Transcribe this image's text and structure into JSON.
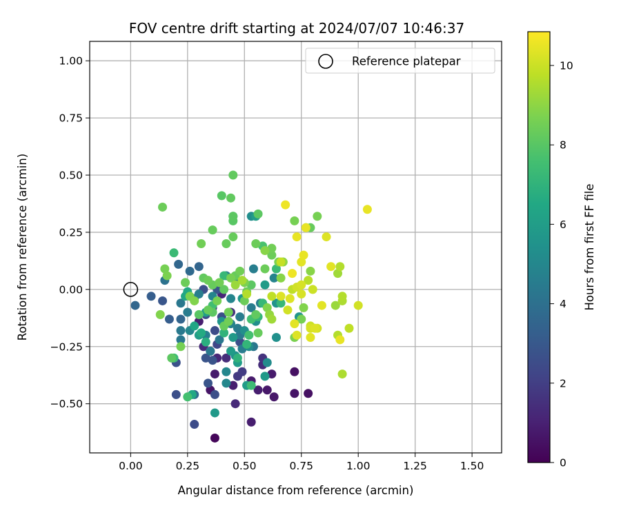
{
  "chart_data": {
    "type": "scatter",
    "title": "FOV centre drift starting at 2024/07/07 10:46:37",
    "xlabel": "Angular distance from reference (arcmin)",
    "ylabel": "Rotation from reference (arcmin)",
    "xlim": [
      -0.18,
      1.63
    ],
    "ylim": [
      -0.715,
      1.085
    ],
    "x_ticks": [
      0.0,
      0.25,
      0.5,
      0.75,
      1.0,
      1.25,
      1.5
    ],
    "x_tick_labels": [
      "0.00",
      "0.25",
      "0.50",
      "0.75",
      "1.00",
      "1.25",
      "1.50"
    ],
    "y_ticks": [
      -0.5,
      -0.25,
      0.0,
      0.25,
      0.5,
      0.75,
      1.0
    ],
    "y_tick_labels": [
      "−0.50",
      "−0.25",
      "0.00",
      "0.25",
      "0.50",
      "0.75",
      "1.00"
    ],
    "grid": true,
    "colormap": "viridis",
    "colorbar": {
      "label": "Hours from first FF file",
      "range": [
        0,
        10.85
      ],
      "ticks": [
        0,
        2,
        4,
        6,
        8,
        10
      ],
      "tick_labels": [
        "0",
        "2",
        "4",
        "6",
        "8",
        "10"
      ]
    },
    "legend": {
      "position": "top-right",
      "entries": [
        "Reference platepar"
      ]
    },
    "reference_point": {
      "x": 0.0,
      "y": 0.0,
      "label": "Reference platepar"
    },
    "series": [
      {
        "points": [
          [
            0.37,
            -0.65,
            0.2
          ],
          [
            0.35,
            -0.44,
            0.6
          ],
          [
            0.37,
            -0.37,
            0.8
          ],
          [
            0.45,
            -0.42,
            0.9
          ],
          [
            0.46,
            -0.5,
            1.3
          ],
          [
            0.53,
            -0.58,
            0.9
          ],
          [
            0.53,
            -0.4,
            0.8
          ],
          [
            0.56,
            -0.44,
            0.9
          ],
          [
            0.6,
            -0.44,
            0.7
          ],
          [
            0.63,
            -0.47,
            0.7
          ],
          [
            0.62,
            -0.37,
            0.8
          ],
          [
            0.72,
            -0.36,
            0.5
          ],
          [
            0.72,
            -0.455,
            0.6
          ],
          [
            0.78,
            -0.455,
            0.5
          ],
          [
            0.3,
            -0.14,
            0.9
          ],
          [
            0.32,
            -0.25,
            1.3
          ],
          [
            0.35,
            -0.27,
            1.2
          ],
          [
            0.38,
            -0.3,
            1.2
          ],
          [
            0.42,
            -0.3,
            1.4
          ],
          [
            0.47,
            -0.38,
            1.8
          ],
          [
            0.49,
            -0.36,
            1.9
          ],
          [
            0.58,
            -0.3,
            1.6
          ],
          [
            0.58,
            -0.33,
            1.4
          ],
          [
            0.4,
            -0.02,
            1.2
          ],
          [
            0.44,
            -0.1,
            1.5
          ],
          [
            0.36,
            -0.08,
            1.6
          ],
          [
            0.28,
            -0.59,
            2.5
          ],
          [
            0.2,
            -0.46,
            2.6
          ],
          [
            0.37,
            -0.46,
            2.6
          ],
          [
            0.34,
            -0.41,
            2.8
          ],
          [
            0.2,
            -0.32,
            2.7
          ],
          [
            0.33,
            -0.3,
            2.8
          ],
          [
            0.36,
            -0.31,
            2.8
          ],
          [
            0.48,
            -0.23,
            2.6
          ],
          [
            0.38,
            -0.24,
            2.3
          ],
          [
            0.33,
            -0.11,
            2.5
          ],
          [
            0.37,
            -0.18,
            2.5
          ],
          [
            0.4,
            -0.12,
            2.6
          ],
          [
            0.32,
            0.0,
            2.6
          ],
          [
            0.38,
            0.0,
            2.9
          ],
          [
            0.14,
            -0.05,
            2.9
          ],
          [
            0.09,
            -0.03,
            3.2
          ],
          [
            0.02,
            -0.07,
            3.6
          ],
          [
            0.17,
            -0.13,
            3.2
          ],
          [
            0.22,
            -0.13,
            3.5
          ],
          [
            0.3,
            0.1,
            3.5
          ],
          [
            0.26,
            0.08,
            3.7
          ],
          [
            0.21,
            0.11,
            3.6
          ],
          [
            0.28,
            -0.46,
            3.7
          ],
          [
            0.15,
            0.04,
            4.1
          ],
          [
            0.22,
            -0.06,
            4.3
          ],
          [
            0.22,
            -0.18,
            4.4
          ],
          [
            0.22,
            -0.22,
            4.3
          ],
          [
            0.25,
            -0.1,
            4.5
          ],
          [
            0.28,
            -0.04,
            4.7
          ],
          [
            0.3,
            -0.02,
            4.6
          ],
          [
            0.33,
            -0.2,
            4.6
          ],
          [
            0.35,
            -0.27,
            4.4
          ],
          [
            0.39,
            -0.22,
            4.3
          ],
          [
            0.42,
            0.06,
            4.5
          ],
          [
            0.47,
            0.04,
            4.4
          ],
          [
            0.48,
            -0.12,
            4.5
          ],
          [
            0.47,
            -0.17,
            4.5
          ],
          [
            0.48,
            -0.2,
            4.4
          ],
          [
            0.49,
            -0.26,
            4.5
          ],
          [
            0.53,
            -0.08,
            4.5
          ],
          [
            0.54,
            -0.25,
            4.3
          ],
          [
            0.54,
            0.09,
            4.6
          ],
          [
            0.57,
            -0.06,
            4.6
          ],
          [
            0.63,
            0.05,
            4.8
          ],
          [
            0.44,
            -0.15,
            4.8
          ],
          [
            0.44,
            -0.04,
            4.9
          ],
          [
            0.36,
            -0.03,
            4.9
          ],
          [
            0.42,
            -0.36,
            5.0
          ],
          [
            0.42,
            -0.41,
            5.0
          ],
          [
            0.26,
            -0.18,
            5.0
          ],
          [
            0.53,
            0.32,
            5.3
          ],
          [
            0.6,
            -0.32,
            5.2
          ],
          [
            0.52,
            -0.25,
            5.2
          ],
          [
            0.46,
            -0.29,
            5.4
          ],
          [
            0.5,
            -0.18,
            5.3
          ],
          [
            0.64,
            -0.21,
            5.4
          ],
          [
            0.64,
            -0.06,
            5.5
          ],
          [
            0.74,
            -0.12,
            5.6
          ],
          [
            0.55,
            -0.14,
            5.3
          ],
          [
            0.49,
            -0.04,
            5.7
          ],
          [
            0.4,
            -0.14,
            5.6
          ],
          [
            0.37,
            -0.54,
            5.8
          ],
          [
            0.59,
            -0.38,
            5.8
          ],
          [
            0.51,
            -0.42,
            5.9
          ],
          [
            0.59,
            0.02,
            5.9
          ],
          [
            0.45,
            -0.21,
            5.8
          ],
          [
            0.55,
            0.32,
            6.0
          ],
          [
            0.33,
            -0.1,
            6.0
          ],
          [
            0.47,
            -0.32,
            6.0
          ],
          [
            0.44,
            -0.27,
            5.9
          ],
          [
            0.3,
            -0.2,
            6.0
          ],
          [
            0.45,
            0.32,
            6.0
          ],
          [
            0.24,
            -0.03,
            6.4
          ],
          [
            0.25,
            -0.01,
            6.5
          ],
          [
            0.28,
            -0.16,
            6.4
          ],
          [
            0.27,
            -0.46,
            6.5
          ],
          [
            0.31,
            -0.19,
            6.6
          ],
          [
            0.33,
            -0.23,
            6.8
          ],
          [
            0.41,
            -0.19,
            7.0
          ],
          [
            0.47,
            -0.3,
            7.0
          ],
          [
            0.51,
            -0.24,
            7.1
          ],
          [
            0.56,
            -0.12,
            7.1
          ],
          [
            0.58,
            -0.06,
            7.2
          ],
          [
            0.64,
            0.09,
            7.3
          ],
          [
            0.66,
            -0.06,
            7.2
          ],
          [
            0.41,
            0.06,
            7.2
          ],
          [
            0.19,
            0.16,
            7.3
          ],
          [
            0.19,
            -0.3,
            7.4
          ],
          [
            0.25,
            -0.47,
            7.6
          ],
          [
            0.36,
            -0.07,
            7.5
          ],
          [
            0.52,
            -0.2,
            7.6
          ],
          [
            0.58,
            0.19,
            7.7
          ],
          [
            0.53,
            -0.13,
            7.6
          ],
          [
            0.53,
            -0.42,
            7.4
          ],
          [
            0.14,
            0.36,
            8.4
          ],
          [
            0.4,
            0.41,
            8.0
          ],
          [
            0.44,
            0.4,
            8.2
          ],
          [
            0.45,
            0.5,
            8.2
          ],
          [
            0.45,
            0.32,
            8.1
          ],
          [
            0.45,
            0.3,
            8.0
          ],
          [
            0.36,
            0.26,
            8.3
          ],
          [
            0.31,
            0.2,
            8.5
          ],
          [
            0.42,
            0.2,
            8.3
          ],
          [
            0.45,
            0.23,
            8.3
          ],
          [
            0.56,
            0.33,
            8.1
          ],
          [
            0.55,
            0.2,
            8.4
          ],
          [
            0.62,
            0.18,
            8.5
          ],
          [
            0.62,
            0.15,
            8.4
          ],
          [
            0.65,
            0.12,
            8.7
          ],
          [
            0.59,
            0.09,
            8.4
          ],
          [
            0.15,
            0.09,
            8.6
          ],
          [
            0.16,
            0.06,
            8.7
          ],
          [
            0.24,
            0.03,
            8.4
          ],
          [
            0.26,
            -0.03,
            8.7
          ],
          [
            0.28,
            -0.05,
            8.8
          ],
          [
            0.32,
            0.05,
            8.2
          ],
          [
            0.34,
            0.04,
            8.4
          ],
          [
            0.36,
            0.02,
            8.3
          ],
          [
            0.38,
            -0.05,
            8.6
          ],
          [
            0.39,
            0.03,
            8.5
          ],
          [
            0.41,
            0.0,
            8.2
          ],
          [
            0.43,
            -0.1,
            8.5
          ],
          [
            0.44,
            0.05,
            8.6
          ],
          [
            0.46,
            0.06,
            8.3
          ],
          [
            0.48,
            0.08,
            8.5
          ],
          [
            0.5,
            0.03,
            8.7
          ],
          [
            0.51,
            -0.01,
            8.4
          ],
          [
            0.53,
            0.02,
            8.1
          ],
          [
            0.5,
            -0.05,
            8.4
          ],
          [
            0.55,
            -0.11,
            8.2
          ],
          [
            0.56,
            -0.19,
            8.3
          ],
          [
            0.43,
            -0.14,
            8.5
          ],
          [
            0.41,
            -0.16,
            8.3
          ],
          [
            0.36,
            -0.1,
            8.1
          ],
          [
            0.34,
            -0.09,
            8.3
          ],
          [
            0.3,
            -0.11,
            8.0
          ],
          [
            0.22,
            -0.25,
            8.6
          ],
          [
            0.18,
            -0.3,
            8.1
          ],
          [
            0.13,
            -0.11,
            8.8
          ],
          [
            0.77,
            0.27,
            8.5
          ],
          [
            0.79,
            0.27,
            8.3
          ],
          [
            0.82,
            0.32,
            8.6
          ],
          [
            0.72,
            0.3,
            8.6
          ],
          [
            0.67,
            0.12,
            9.0
          ],
          [
            0.79,
            0.08,
            8.9
          ],
          [
            0.76,
            -0.08,
            8.8
          ],
          [
            0.75,
            -0.13,
            8.6
          ],
          [
            0.72,
            -0.21,
            8.7
          ],
          [
            0.6,
            -0.08,
            8.8
          ],
          [
            0.59,
            0.17,
            8.9
          ],
          [
            0.66,
            0.05,
            8.9
          ],
          [
            0.61,
            -0.11,
            9.1
          ],
          [
            0.62,
            -0.13,
            9.3
          ],
          [
            0.46,
            0.02,
            9.2
          ],
          [
            0.49,
            0.04,
            9.4
          ],
          [
            0.51,
            -0.02,
            9.6
          ],
          [
            0.9,
            -0.07,
            9.2
          ],
          [
            0.93,
            -0.05,
            9.5
          ],
          [
            0.93,
            -0.03,
            9.6
          ],
          [
            0.91,
            0.07,
            9.3
          ],
          [
            0.92,
            0.1,
            9.6
          ],
          [
            0.96,
            -0.17,
            9.8
          ],
          [
            0.93,
            -0.37,
            9.5
          ],
          [
            0.91,
            -0.2,
            9.6
          ],
          [
            0.66,
            0.12,
            9.9
          ],
          [
            0.78,
            0.04,
            9.7
          ],
          [
            0.8,
            0.0,
            10.0
          ],
          [
            0.71,
            0.0,
            9.8
          ],
          [
            0.73,
            0.01,
            10.1
          ],
          [
            0.75,
            0.02,
            10.2
          ],
          [
            0.62,
            -0.03,
            9.8
          ],
          [
            0.7,
            -0.04,
            10.3
          ],
          [
            0.69,
            -0.09,
            10.1
          ],
          [
            0.75,
            -0.02,
            10.2
          ],
          [
            0.81,
            -0.17,
            10.3
          ],
          [
            0.79,
            -0.17,
            10.2
          ],
          [
            0.79,
            -0.16,
            10.0
          ],
          [
            0.82,
            -0.17,
            10.1
          ],
          [
            0.72,
            -0.15,
            10.4
          ],
          [
            0.73,
            -0.2,
            10.3
          ],
          [
            0.79,
            -0.21,
            10.4
          ],
          [
            0.92,
            -0.22,
            10.5
          ],
          [
            0.66,
            -0.03,
            10.3
          ],
          [
            0.84,
            -0.07,
            10.4
          ],
          [
            1.0,
            -0.07,
            10.1
          ],
          [
            0.73,
            0.23,
            10.5
          ],
          [
            0.86,
            0.23,
            10.3
          ],
          [
            0.88,
            0.1,
            10.4
          ],
          [
            0.75,
            0.12,
            10.4
          ],
          [
            0.76,
            0.15,
            10.5
          ],
          [
            0.68,
            0.37,
            10.6
          ],
          [
            1.04,
            0.35,
            10.5
          ],
          [
            0.71,
            0.07,
            10.6
          ],
          [
            0.77,
            0.27,
            10.5
          ]
        ]
      }
    ]
  }
}
